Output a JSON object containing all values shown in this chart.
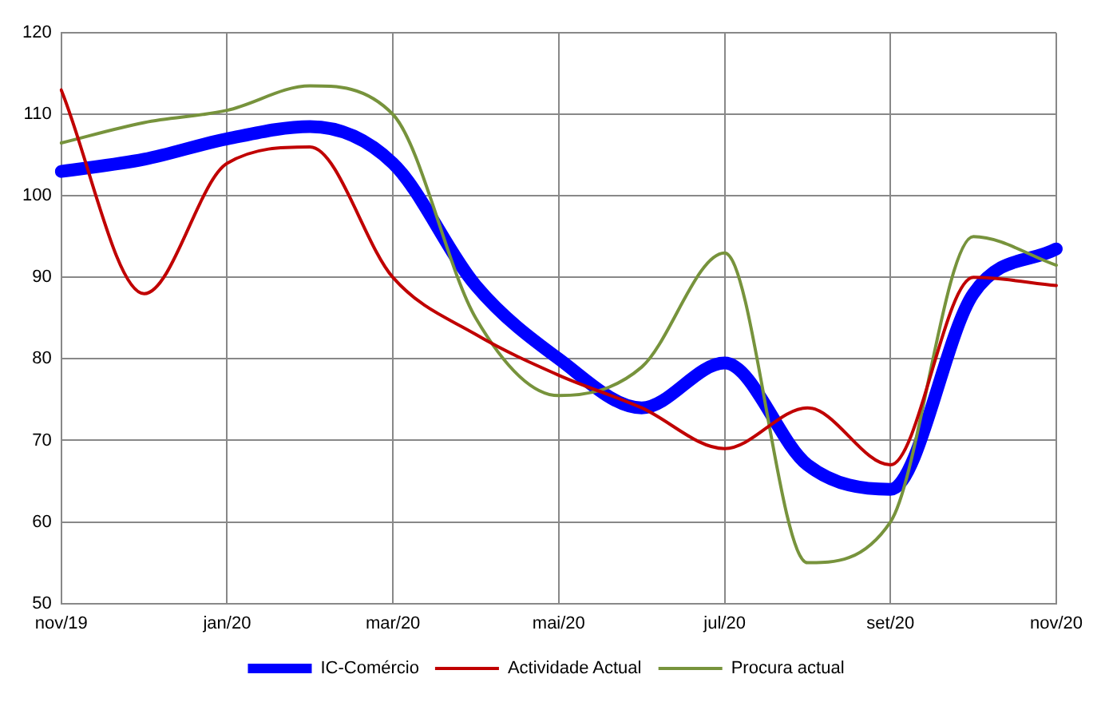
{
  "chart_data": {
    "type": "line",
    "categories": [
      "nov/19",
      null,
      "jan/20",
      null,
      "mar/20",
      null,
      "mai/20",
      null,
      "jul/20",
      null,
      "set/20",
      null,
      "nov/20"
    ],
    "series": [
      {
        "name": "IC-Comércio",
        "color": "#0000ff",
        "values": [
          103,
          104.5,
          107,
          108.5,
          104,
          89,
          80,
          74,
          79.5,
          67,
          64,
          88,
          93.5
        ]
      },
      {
        "name": "Actividade Actual",
        "color": "#c00000",
        "values": [
          113,
          88,
          104,
          106,
          90,
          83,
          78,
          74,
          69,
          74,
          67,
          90,
          89
        ]
      },
      {
        "name": "Procura actual",
        "color": "#77933c",
        "values": [
          106.5,
          109,
          110.5,
          113.5,
          110,
          85,
          75.5,
          79,
          93,
          55,
          60,
          95,
          91.5
        ]
      }
    ],
    "ylim": [
      50,
      120
    ],
    "yticks": [
      50,
      60,
      70,
      80,
      90,
      100,
      110,
      120
    ],
    "grid": true,
    "legend": "bottom",
    "marker": "none",
    "line_style": "solid"
  }
}
